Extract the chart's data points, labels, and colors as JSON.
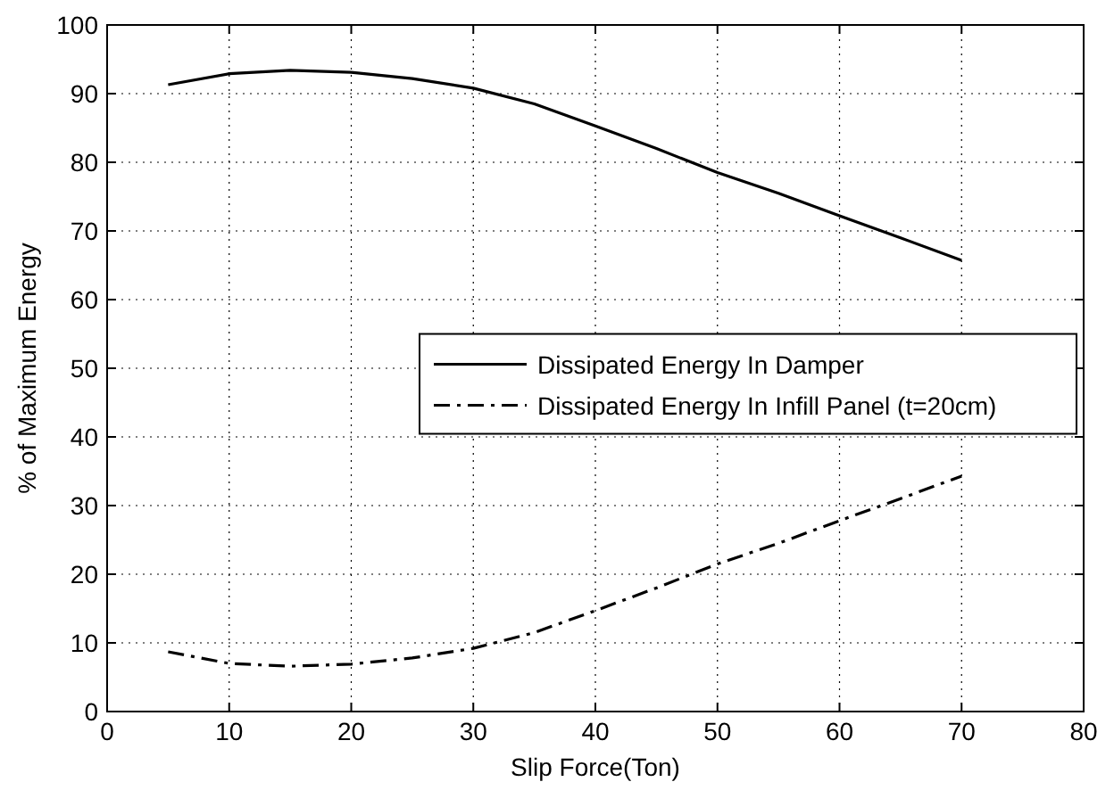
{
  "chart_data": {
    "type": "line",
    "xlabel": "Slip Force(Ton)",
    "ylabel": "% of Maximum Energy",
    "x": [
      5,
      10,
      15,
      20,
      25,
      30,
      35,
      40,
      45,
      50,
      55,
      60,
      65,
      70
    ],
    "series": [
      {
        "name": "Dissipated Energy In Damper",
        "color": "#000000",
        "line_style": "solid",
        "values": [
          91.3,
          92.9,
          93.4,
          93.1,
          92.2,
          90.8,
          88.5,
          85.3,
          82,
          78.5,
          75.5,
          72.2,
          69,
          65.7
        ]
      },
      {
        "name": "Dissipated Energy In Infill Panel (t=20cm)",
        "color": "#000000",
        "line_style": "dashdot",
        "values": [
          8.7,
          7,
          6.6,
          6.9,
          7.8,
          9.2,
          11.5,
          14.7,
          18,
          21.5,
          24.5,
          27.8,
          31,
          34.3
        ]
      }
    ],
    "xlim": [
      0,
      80
    ],
    "xticks": [
      0,
      10,
      20,
      30,
      40,
      50,
      60,
      70,
      80
    ],
    "ylim": [
      0,
      100
    ],
    "yticks": [
      0,
      10,
      20,
      30,
      40,
      50,
      60,
      70,
      80,
      90,
      100
    ],
    "grid": true,
    "legend": "right",
    "marker": "none"
  }
}
